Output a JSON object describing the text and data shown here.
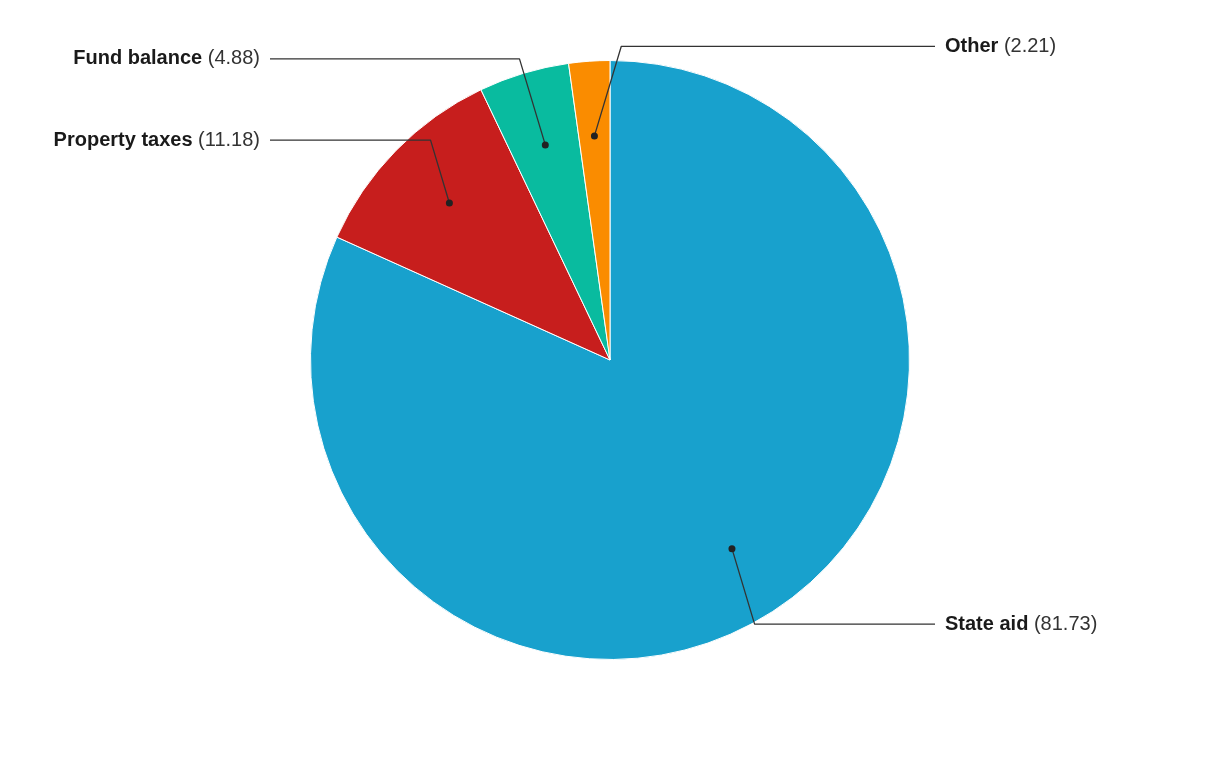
{
  "chart_data": {
    "type": "pie",
    "categories": [
      "State aid",
      "Property taxes",
      "Fund balance",
      "Other"
    ],
    "values": [
      81.73,
      11.18,
      4.88,
      2.21
    ],
    "colors": [
      "#18a1cd",
      "#c71e1d",
      "#09bb9f",
      "#fa8c00"
    ],
    "value_labels": [
      "(81.73)",
      "(11.18)",
      "(4.88)",
      "(2.21)"
    ],
    "legend": false
  }
}
